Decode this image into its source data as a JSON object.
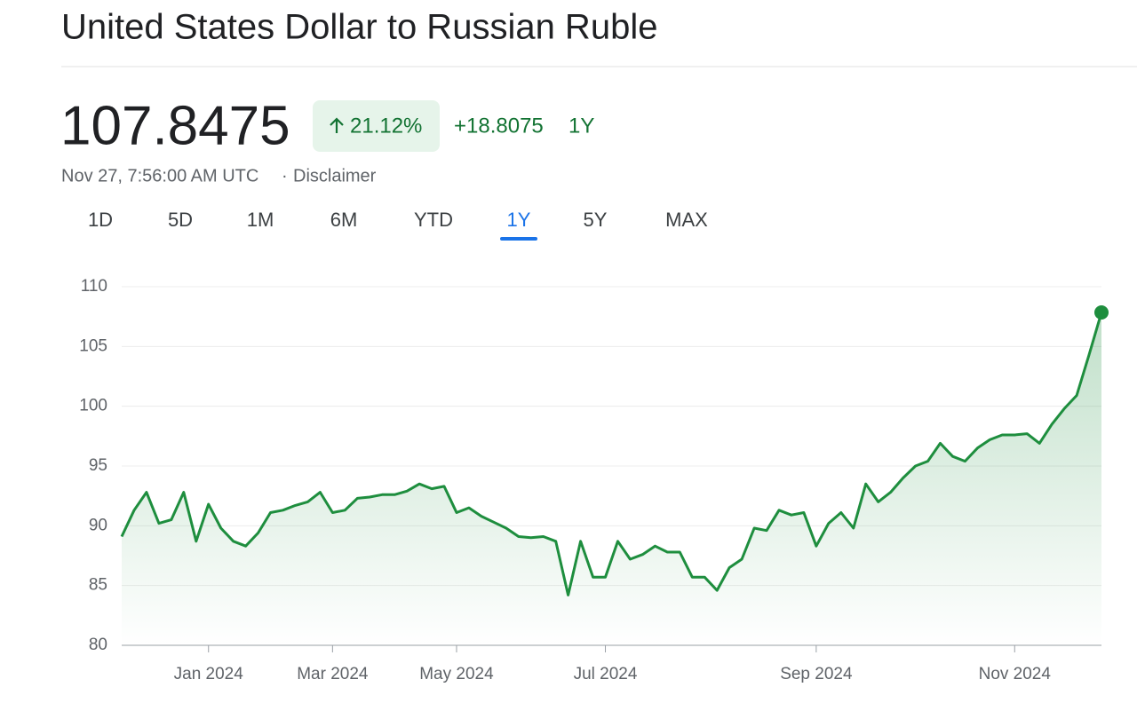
{
  "header": {
    "title": "United States Dollar to Russian Ruble"
  },
  "quote": {
    "price": "107.8475",
    "change_percent": "21.12%",
    "change": "+18.8075",
    "period": "1Y",
    "timestamp": "Nov 27, 7:56:00 AM UTC",
    "separator": "·",
    "disclaimer": "Disclaimer"
  },
  "tabs": {
    "items": [
      "1D",
      "5D",
      "1M",
      "6M",
      "YTD",
      "1Y",
      "5Y",
      "MAX"
    ],
    "active": "1Y"
  },
  "chart_data": {
    "type": "line",
    "categories": [
      null,
      null,
      null,
      null,
      null,
      null,
      null,
      "Jan 2024",
      null,
      null,
      null,
      null,
      null,
      null,
      null,
      null,
      null,
      "Mar 2024",
      null,
      null,
      null,
      null,
      null,
      null,
      null,
      null,
      null,
      "May 2024",
      null,
      null,
      null,
      null,
      null,
      null,
      null,
      null,
      null,
      null,
      null,
      "Jul 2024",
      null,
      null,
      null,
      null,
      null,
      null,
      null,
      null,
      null,
      null,
      null,
      null,
      null,
      null,
      null,
      null,
      "Sep 2024",
      null,
      null,
      null,
      null,
      null,
      null,
      null,
      null,
      null,
      null,
      null,
      null,
      null,
      null,
      null,
      "Nov 2024",
      null,
      null,
      null,
      null,
      null,
      null,
      null
    ],
    "series": [
      {
        "name": "USD/RUB",
        "color": "#1e8e3e",
        "values": [
          89.1,
          91.3,
          92.8,
          90.2,
          90.5,
          92.8,
          88.7,
          91.8,
          89.8,
          88.7,
          88.3,
          89.4,
          91.1,
          91.3,
          91.7,
          92.0,
          92.8,
          91.1,
          91.3,
          92.3,
          92.4,
          92.6,
          92.6,
          92.9,
          93.5,
          93.1,
          93.3,
          91.1,
          91.5,
          90.8,
          90.3,
          89.8,
          89.1,
          89.0,
          89.1,
          88.7,
          84.2,
          88.7,
          85.7,
          85.7,
          88.7,
          87.2,
          87.6,
          88.3,
          87.8,
          87.8,
          85.7,
          85.7,
          84.6,
          86.5,
          87.2,
          89.8,
          89.6,
          91.3,
          90.9,
          91.1,
          88.3,
          90.2,
          91.1,
          89.8,
          93.5,
          92.0,
          92.8,
          94.0,
          95.0,
          95.4,
          96.9,
          95.8,
          95.4,
          96.5,
          97.2,
          97.6,
          97.6,
          97.7,
          96.9,
          98.5,
          99.8,
          100.9,
          104.3,
          107.8475
        ]
      }
    ],
    "ylim": [
      80,
      110
    ],
    "yticks": [
      80,
      85,
      90,
      95,
      100,
      105,
      110
    ],
    "grid": true,
    "area_fill": true,
    "end_marker": true
  }
}
